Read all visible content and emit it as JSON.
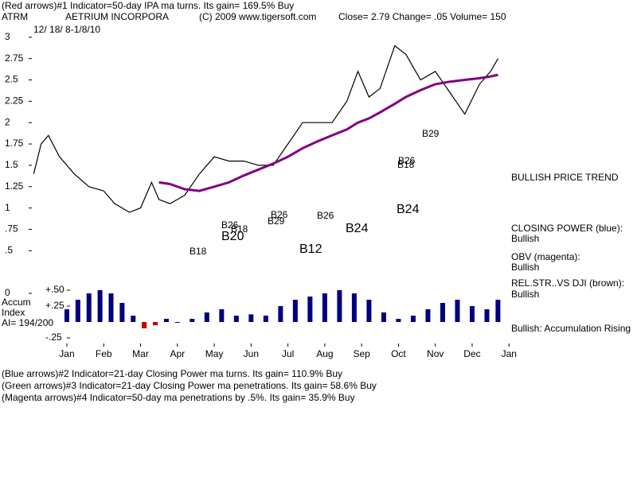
{
  "header": {
    "line1": "(Red arrows)#1 Indicator=50-day IPA ma turns. Its gain= 169.5% Buy",
    "symbol": "ATRM",
    "company": "AETRIUM INCORPORA",
    "copyright": "(C) 2009 www.tigersoft.com",
    "quote": "Close= 2.79 Change= .05 Volume= 150",
    "dates": "12/ 18/ 8-1/8/10"
  },
  "labels": [
    "BULLISH PRICE TREND",
    "CLOSING POWER (blue):",
    "Bullish",
    "OBV (magenta):",
    "Bullish",
    "REL.STR..VS DJI (brown):",
    "Bullish",
    "Bullish: Accumulation Rising",
    "Accum",
    "Index",
    "AI= 194/200"
  ],
  "annotations": [
    "B18",
    "B20",
    "B26",
    "B18",
    "B29",
    "B26",
    "B26",
    "B24",
    "B24",
    "B12",
    "B29",
    "B26",
    "B18"
  ],
  "footer": [
    "(Blue arrows)#2 Indicator=21-day Closing Power ma turns. Its gain= 110.9% Buy",
    "(Green arrows)#3 Indicator=21-day Closing Power ma penetrations. Its gain= 58.6% Buy",
    "(Magenta arrows)#4 Indicator=50-day ma penetrations by .5%. Its gain= 35.9% Buy"
  ],
  "chart_data": [
    {
      "type": "line",
      "x": [
        -0.9,
        -0.7,
        -0.5,
        -0.2,
        0.2,
        0.6,
        1.0,
        1.3,
        1.7,
        2.0,
        2.3,
        2.5,
        2.8,
        3.2,
        3.6,
        4.0,
        4.4,
        4.8,
        5.2,
        5.6,
        6.0,
        6.4,
        6.8,
        7.2,
        7.6,
        7.9,
        8.2,
        8.5,
        8.9,
        9.2,
        9.6,
        10.0,
        10.4,
        10.8,
        11.2,
        11.5,
        11.7
      ],
      "series": [
        {
          "name": "Price",
          "color": "#000000",
          "values": [
            1.4,
            1.75,
            1.85,
            1.6,
            1.4,
            1.25,
            1.2,
            1.05,
            0.95,
            1.0,
            1.3,
            1.1,
            1.05,
            1.15,
            1.4,
            1.6,
            1.55,
            1.55,
            1.5,
            1.5,
            1.75,
            2.0,
            2.0,
            2.0,
            2.25,
            2.6,
            2.3,
            2.4,
            2.9,
            2.8,
            2.5,
            2.6,
            2.35,
            2.1,
            2.45,
            2.6,
            2.75
          ]
        },
        {
          "name": "50-day MA",
          "color": "#800080",
          "values": [
            null,
            null,
            null,
            null,
            null,
            null,
            null,
            null,
            null,
            null,
            null,
            1.3,
            1.28,
            1.22,
            1.2,
            1.25,
            1.3,
            1.38,
            1.45,
            1.52,
            1.6,
            1.7,
            1.78,
            1.85,
            1.92,
            2.0,
            2.05,
            2.12,
            2.22,
            2.3,
            2.38,
            2.45,
            2.48,
            2.5,
            2.52,
            2.54,
            2.56
          ]
        }
      ],
      "xlim": [
        -0.95,
        11.8
      ],
      "xticks": [
        {
          "value": 0,
          "label": "Jan"
        },
        {
          "value": 1,
          "label": "Feb"
        },
        {
          "value": 2,
          "label": "Mar"
        },
        {
          "value": 3,
          "label": "Apr"
        },
        {
          "value": 4,
          "label": "May"
        },
        {
          "value": 5,
          "label": "Jun"
        },
        {
          "value": 6,
          "label": "Jul"
        },
        {
          "value": 7,
          "label": "Aug"
        },
        {
          "value": 8,
          "label": "Sep"
        },
        {
          "value": 9,
          "label": "Oct"
        },
        {
          "value": 10,
          "label": "Nov"
        },
        {
          "value": 11,
          "label": "Dec"
        },
        {
          "value": 12,
          "label": "Jan"
        }
      ],
      "ylim": [
        0,
        3.25
      ],
      "yticks": [
        0,
        {
          "value": 0.5,
          "label": ".5"
        },
        {
          "value": 0.75,
          "label": ".75"
        },
        1,
        1.25,
        1.5,
        1.75,
        2,
        2.25,
        2.5,
        2.75,
        3
      ]
    },
    {
      "type": "bar",
      "color": "#000080",
      "x": [
        0.0,
        0.3,
        0.6,
        0.9,
        1.2,
        1.5,
        1.8,
        2.1,
        2.4,
        2.7,
        3.0,
        3.4,
        3.8,
        4.2,
        4.6,
        5.0,
        5.4,
        5.8,
        6.2,
        6.6,
        7.0,
        7.4,
        7.8,
        8.2,
        8.6,
        9.0,
        9.4,
        9.8,
        10.2,
        10.6,
        11.0,
        11.4,
        11.7
      ],
      "values": [
        0.2,
        0.35,
        0.45,
        0.5,
        0.45,
        0.3,
        0.1,
        -0.1,
        -0.05,
        0.05,
        0.0,
        0.05,
        0.15,
        0.2,
        0.1,
        0.12,
        0.1,
        0.25,
        0.35,
        0.4,
        0.45,
        0.5,
        0.45,
        0.35,
        0.15,
        0.05,
        0.1,
        0.2,
        0.3,
        0.35,
        0.25,
        0.2,
        0.35
      ],
      "ylim": [
        -0.3,
        0.6
      ],
      "yticks": [
        {
          "value": 0.5,
          "label": "+.50"
        },
        {
          "value": 0.25,
          "label": "+.25"
        },
        {
          "value": -0.25,
          "label": "-.25"
        }
      ]
    }
  ]
}
